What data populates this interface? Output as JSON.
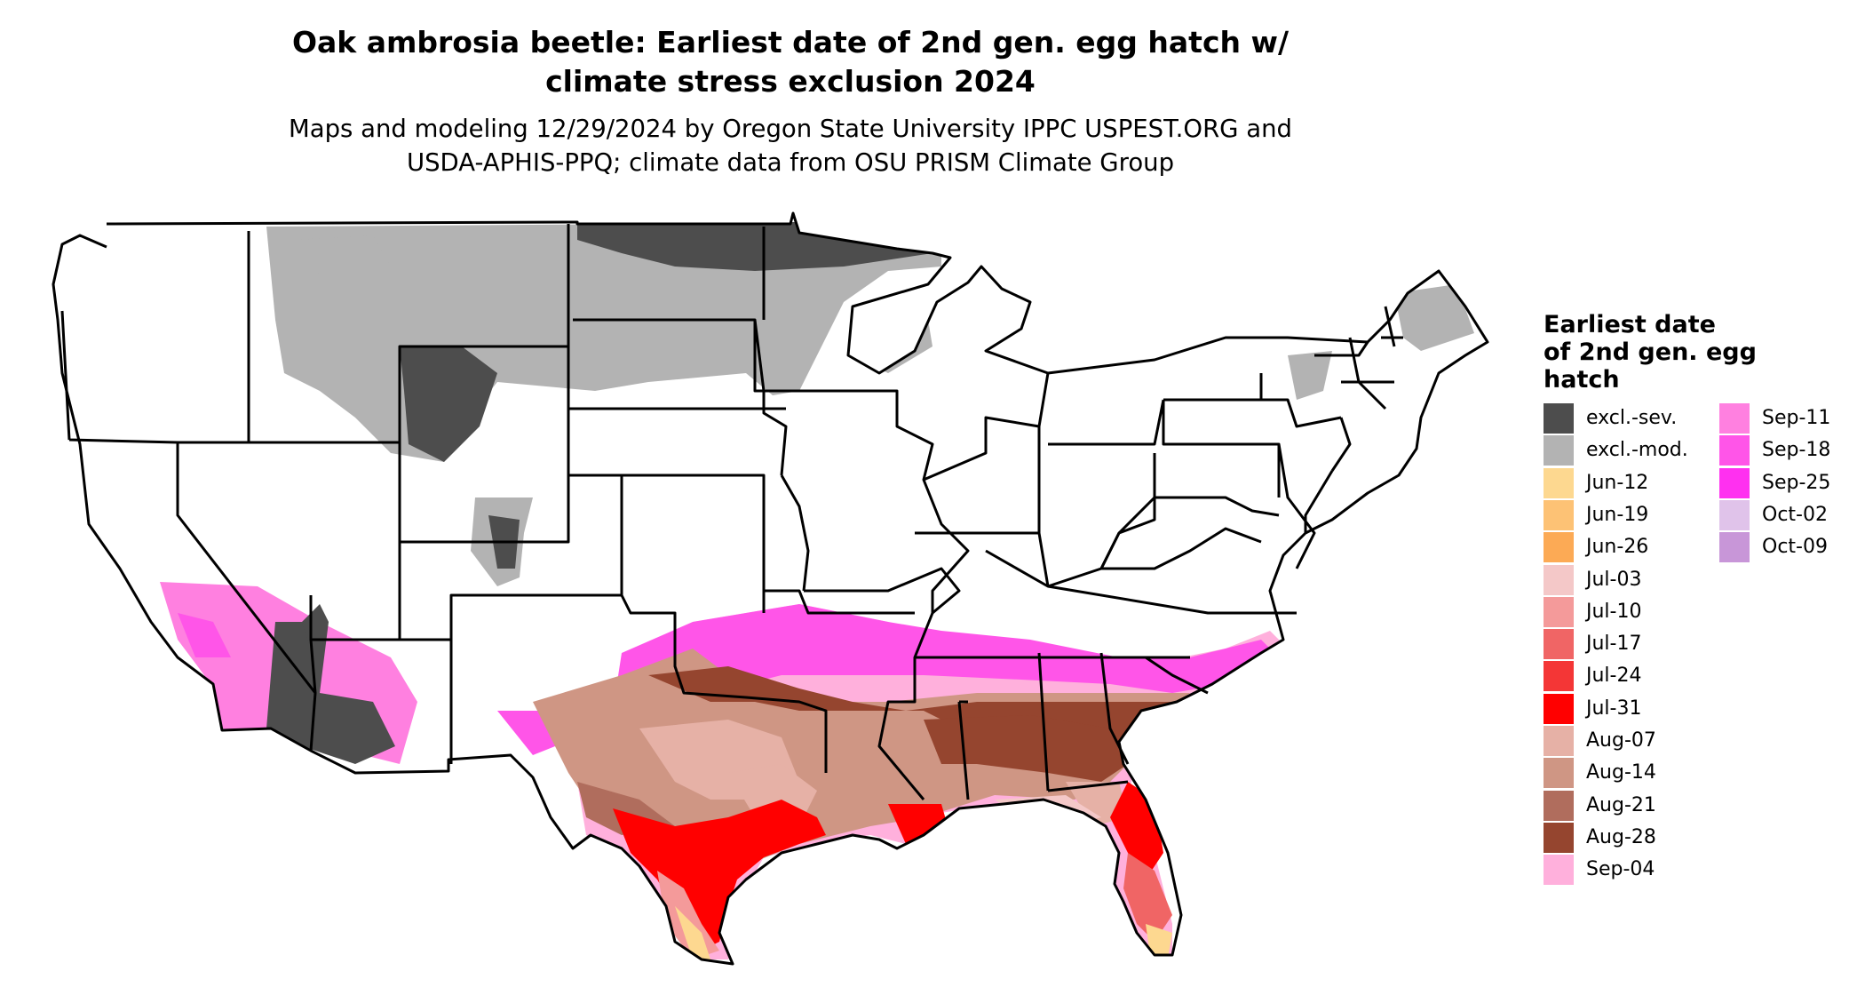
{
  "title_line1": "Oak ambrosia beetle: Earliest date of 2nd gen. egg hatch w/",
  "title_line2": "climate stress exclusion 2024",
  "subtitle_line1": "Maps and modeling 12/29/2024 by Oregon State University IPPC USPEST.ORG and",
  "subtitle_line2": "USDA-APHIS-PPQ; climate data from OSU PRISM Climate Group",
  "legend": {
    "title_line1": "Earliest date",
    "title_line2": "of 2nd gen. egg",
    "title_line3": "hatch",
    "col1": [
      {
        "label": "excl.-sev.",
        "color": "#4d4d4d"
      },
      {
        "label": "excl.-mod.",
        "color": "#b3b3b3"
      },
      {
        "label": "Jun-12",
        "color": "#fdd890"
      },
      {
        "label": "Jun-19",
        "color": "#fdc275"
      },
      {
        "label": "Jun-26",
        "color": "#fcaa55"
      },
      {
        "label": "Jul-03",
        "color": "#f4c8c8"
      },
      {
        "label": "Jul-10",
        "color": "#f49a9a"
      },
      {
        "label": "Jul-17",
        "color": "#f06565"
      },
      {
        "label": "Jul-24",
        "color": "#f43636"
      },
      {
        "label": "Jul-31",
        "color": "#ff0000"
      },
      {
        "label": "Aug-07",
        "color": "#e6b1a6"
      },
      {
        "label": "Aug-14",
        "color": "#cf9684"
      },
      {
        "label": "Aug-21",
        "color": "#b06d5d"
      },
      {
        "label": "Aug-28",
        "color": "#95452f"
      },
      {
        "label": "Sep-04",
        "color": "#ffb0dc"
      }
    ],
    "col2": [
      {
        "label": "Sep-11",
        "color": "#ff80e0"
      },
      {
        "label": "Sep-18",
        "color": "#ff55e8"
      },
      {
        "label": "Sep-25",
        "color": "#ff30f0"
      },
      {
        "label": "Oct-02",
        "color": "#e0c3ea"
      },
      {
        "label": "Oct-09",
        "color": "#c896d8"
      }
    ]
  }
}
